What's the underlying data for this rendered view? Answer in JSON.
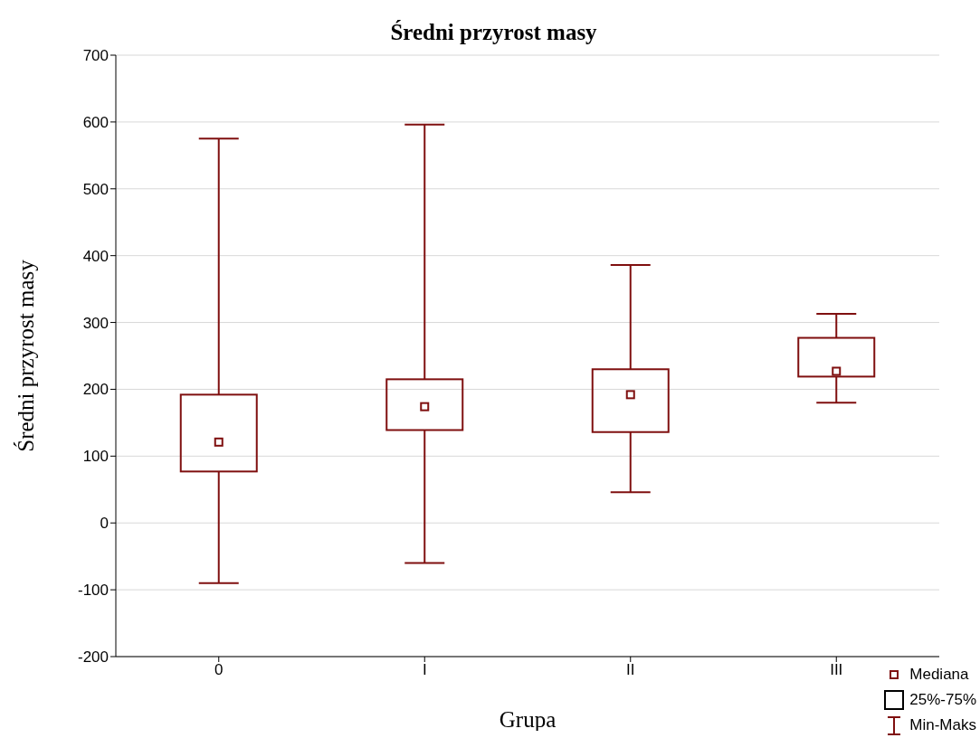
{
  "chart_data": {
    "type": "box",
    "title": "Średni przyrost masy",
    "xlabel": "Grupa",
    "ylabel": "Średni przyrost masy",
    "categories": [
      "0",
      "I",
      "II",
      "III"
    ],
    "color": "#7f0f0f",
    "boxes": [
      {
        "low": -90,
        "q1": 77,
        "median": 121,
        "q3": 192,
        "high": 575
      },
      {
        "low": -60,
        "q1": 139,
        "median": 174,
        "q3": 215,
        "high": 596
      },
      {
        "low": 46,
        "q1": 136,
        "median": 192,
        "q3": 230,
        "high": 386
      },
      {
        "low": 180,
        "q1": 219,
        "median": 227,
        "q3": 277,
        "high": 313
      }
    ],
    "ylim": [
      -200,
      700
    ],
    "yticks": [
      -200,
      -100,
      0,
      100,
      200,
      300,
      400,
      500,
      600,
      700
    ],
    "grid": "y",
    "marker": "square",
    "annotations": [
      "Mediana",
      "25%-75%",
      "Min-Maks"
    ]
  }
}
